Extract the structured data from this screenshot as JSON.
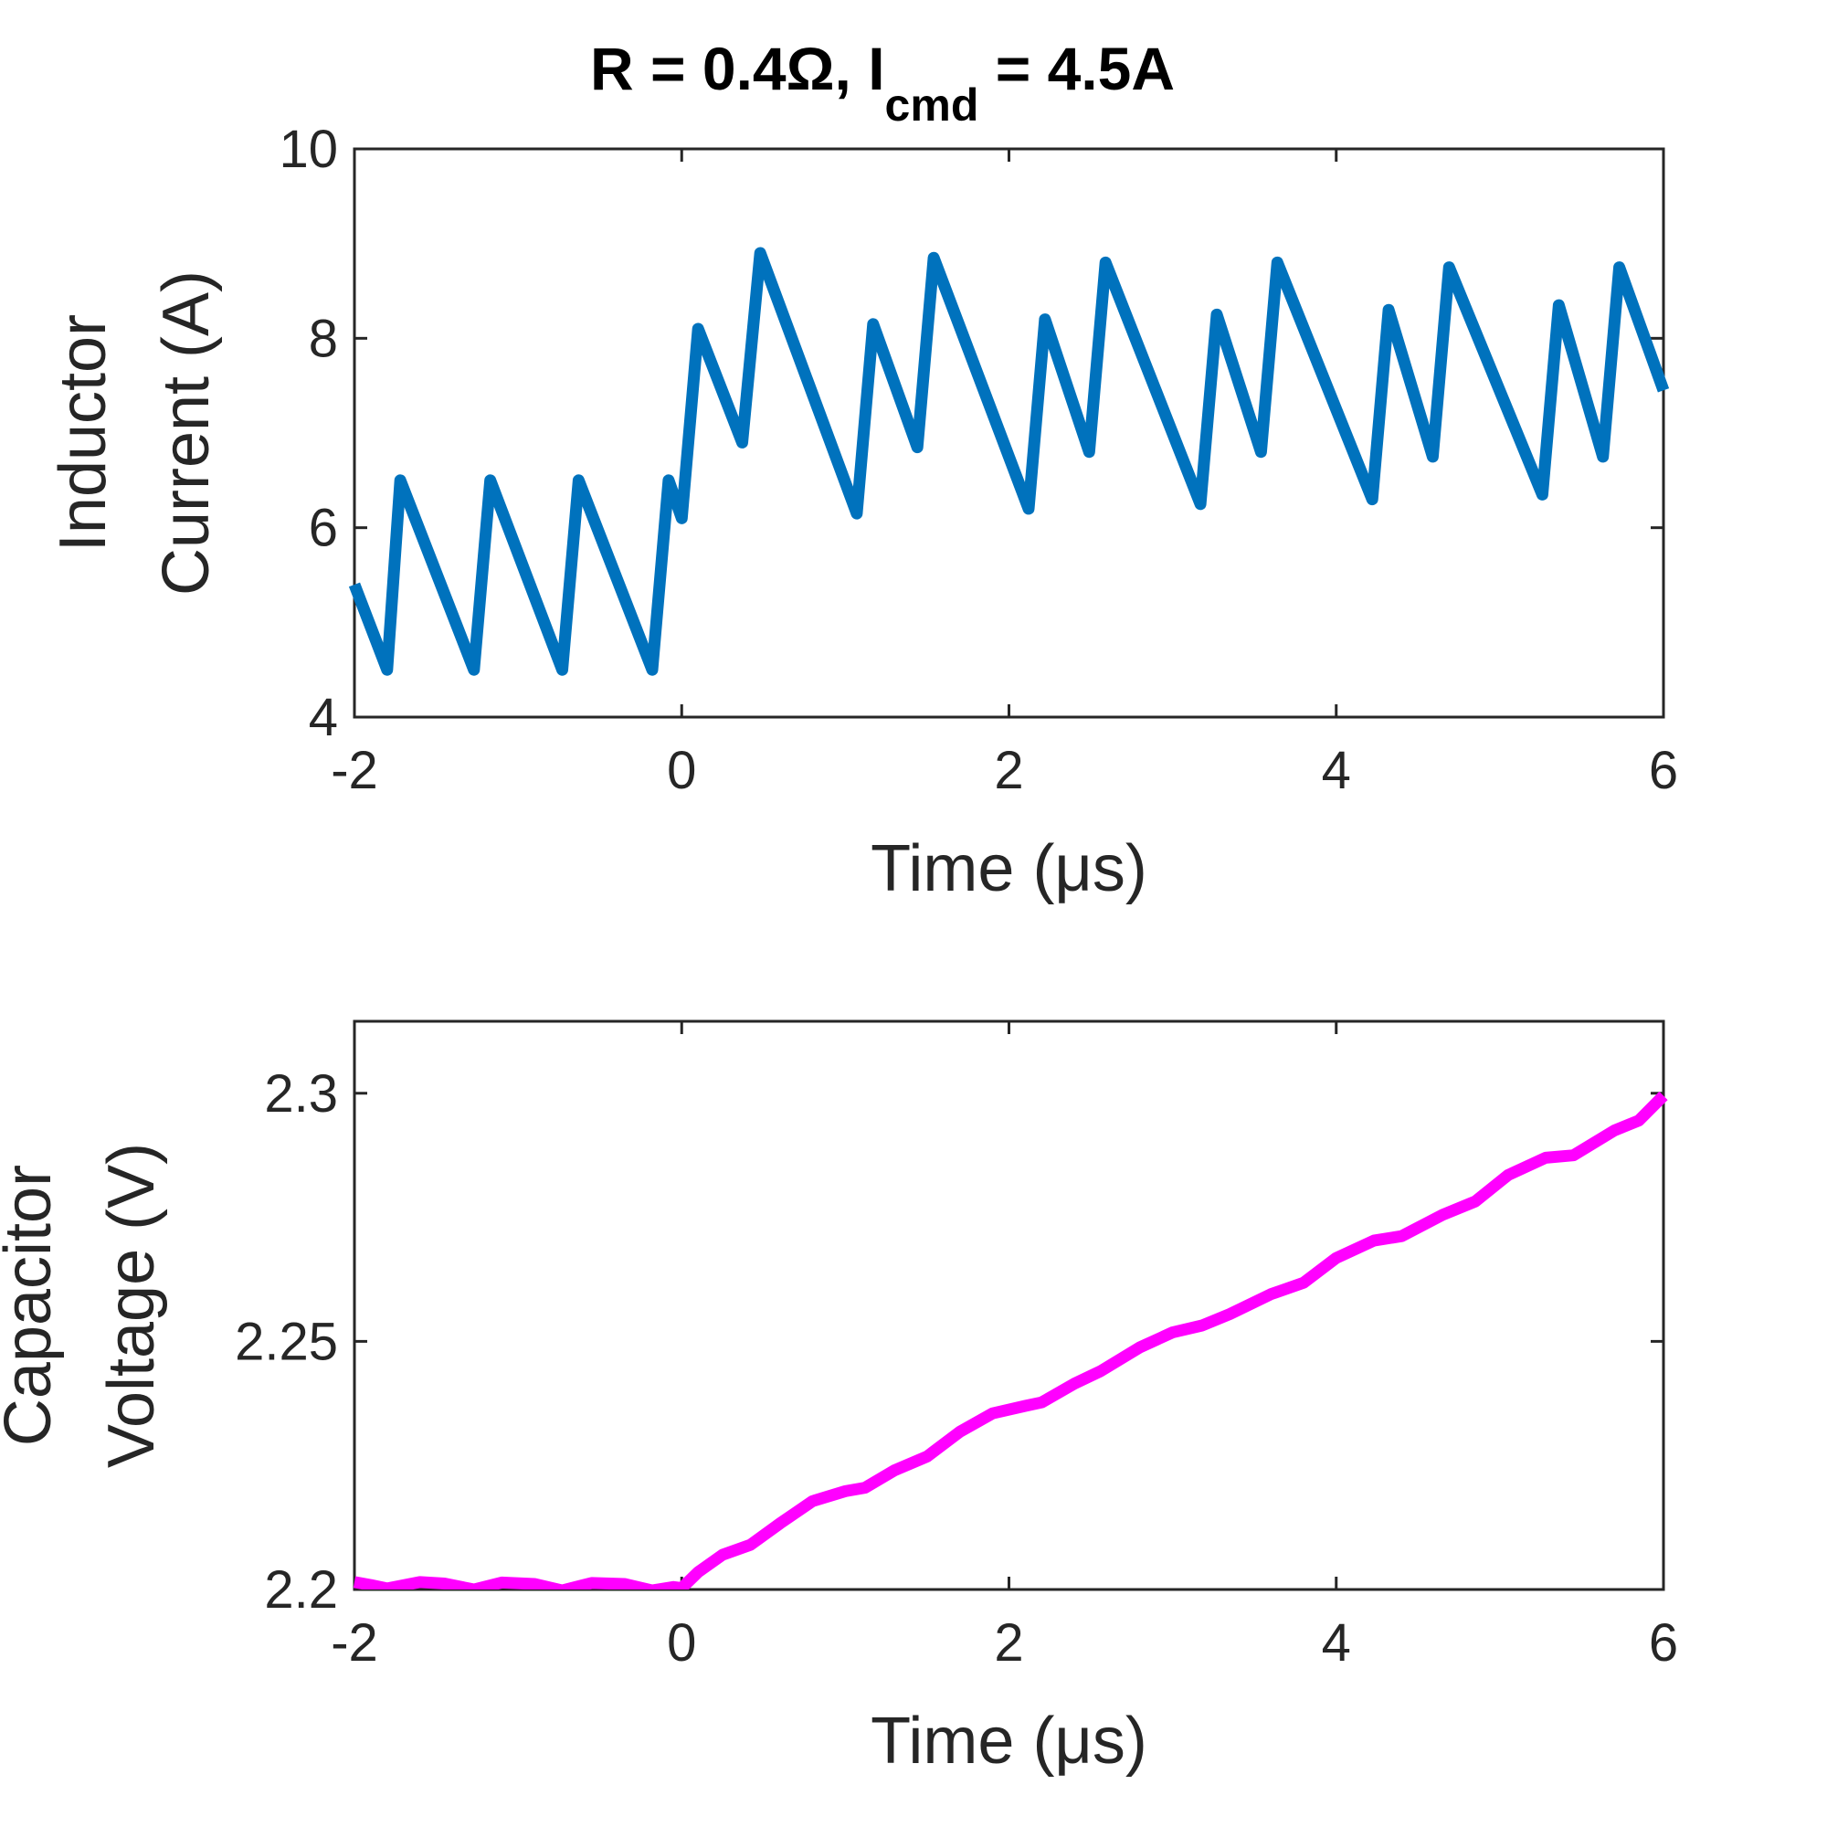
{
  "figure": {
    "title_main": "R = 0.4Ω, I",
    "title_sub": "cmd",
    "title_tail": " = 4.5A"
  },
  "chart_data": [
    {
      "type": "line",
      "id": "inductor",
      "xlabel": "Time (μs)",
      "ylabel_lines": [
        "Inductor",
        "Current (A)"
      ],
      "xlim": [
        -2,
        6
      ],
      "ylim": [
        4,
        10
      ],
      "xticks": [
        -2,
        0,
        2,
        4,
        6
      ],
      "xtick_labels": [
        "-2",
        "0",
        "2",
        "4",
        "6"
      ],
      "yticks": [
        4,
        6,
        8,
        10
      ],
      "ytick_labels": [
        "4",
        "6",
        "8",
        "10"
      ],
      "series": [
        {
          "name": "Inductor Current",
          "color": "#0072BD",
          "x": [
            -2.0,
            -1.8,
            -1.72,
            -1.27,
            -1.17,
            -0.73,
            -0.63,
            -0.18,
            -0.08,
            0.0,
            0.1,
            0.37,
            0.48,
            1.07,
            1.17,
            1.44,
            1.54,
            2.12,
            2.22,
            2.49,
            2.59,
            3.17,
            3.27,
            3.54,
            3.64,
            4.22,
            4.32,
            4.59,
            4.69,
            5.26,
            5.36,
            5.63,
            5.73,
            6.0
          ],
          "y": [
            5.4,
            4.5,
            6.5,
            4.5,
            6.5,
            4.5,
            6.5,
            4.5,
            6.5,
            6.1,
            8.1,
            6.9,
            8.9,
            6.15,
            8.15,
            6.85,
            8.85,
            6.2,
            8.2,
            6.8,
            8.8,
            6.25,
            8.25,
            6.8,
            8.8,
            6.3,
            8.3,
            6.75,
            8.75,
            6.35,
            8.35,
            6.75,
            8.75,
            7.45
          ]
        }
      ]
    },
    {
      "type": "line",
      "id": "capacitor",
      "xlabel": "Time (μs)",
      "ylabel_lines": [
        "Capacitor",
        "Voltage (V)"
      ],
      "xlim": [
        -2,
        6
      ],
      "ylim": [
        2.2,
        2.3145
      ],
      "xticks": [
        -2,
        0,
        2,
        4,
        6
      ],
      "xtick_labels": [
        "-2",
        "0",
        "2",
        "4",
        "6"
      ],
      "yticks": [
        2.2,
        2.25,
        2.3
      ],
      "ytick_labels": [
        "2.2",
        "2.25",
        "2.3"
      ],
      "series": [
        {
          "name": "Capacitor Voltage",
          "color": "#FF00FF",
          "x": [
            -2.0,
            -1.9,
            -1.8,
            -1.6,
            -1.45,
            -1.27,
            -1.1,
            -0.9,
            -0.73,
            -0.55,
            -0.35,
            -0.18,
            -0.05,
            0.0,
            0.1,
            0.25,
            0.42,
            0.6,
            0.8,
            1.0,
            1.12,
            1.3,
            1.5,
            1.7,
            1.9,
            2.1,
            2.2,
            2.4,
            2.56,
            2.8,
            3.0,
            3.18,
            3.35,
            3.6,
            3.8,
            4.0,
            4.23,
            4.4,
            4.65,
            4.85,
            5.05,
            5.28,
            5.45,
            5.7,
            5.85,
            6.0
          ],
          "y": [
            2.2015,
            2.2009,
            2.2002,
            2.2015,
            2.2012,
            2.2,
            2.2014,
            2.2011,
            2.1998,
            2.2013,
            2.2011,
            2.1998,
            2.2005,
            2.2003,
            2.2035,
            2.207,
            2.209,
            2.2133,
            2.2178,
            2.2198,
            2.2205,
            2.224,
            2.2268,
            2.2318,
            2.2355,
            2.237,
            2.2377,
            2.2415,
            2.244,
            2.2488,
            2.2518,
            2.2532,
            2.2555,
            2.2595,
            2.2618,
            2.2668,
            2.2703,
            2.2712,
            2.2755,
            2.2782,
            2.2835,
            2.287,
            2.2875,
            2.2925,
            2.2945,
            2.2995
          ]
        }
      ]
    }
  ]
}
